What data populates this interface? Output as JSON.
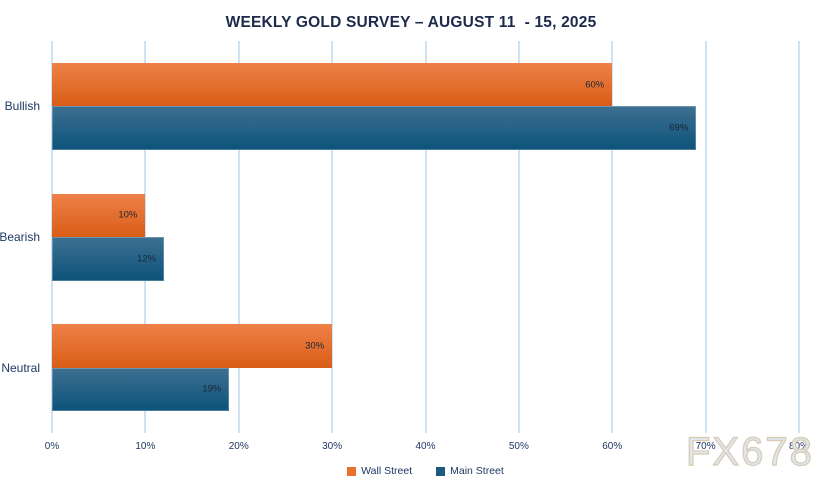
{
  "title": "WEEKLY GOLD SURVEY – AUGUST 11  - 15, 2025",
  "watermark": "FX678",
  "colors": {
    "wall_street_solid": "#e8712f",
    "wall_street_gradient_top": "#ee8148",
    "wall_street_gradient_bottom": "#d95d16",
    "main_street_solid": "#1b5a7e",
    "main_street_gradient_top": "#3d7092",
    "main_street_gradient_bottom": "#0d537a",
    "gridline": "#cfe2f3",
    "axis_text": "#1f3864",
    "title_text": "#1b2a4a"
  },
  "chart_data": {
    "type": "bar",
    "orientation": "horizontal",
    "title": "WEEKLY GOLD SURVEY – AUGUST 11  - 15, 2025",
    "categories": [
      "Bullish",
      "Bearish",
      "Neutral"
    ],
    "series": [
      {
        "name": "Wall Street",
        "color": "#e8712f",
        "values": [
          60,
          10,
          30
        ]
      },
      {
        "name": "Main Street",
        "color": "#1b5a7e",
        "values": [
          69,
          12,
          19
        ]
      }
    ],
    "value_suffix": "%",
    "xlim": [
      0,
      80
    ],
    "x_ticks": [
      "0%",
      "10%",
      "20%",
      "30%",
      "40%",
      "50%",
      "60%",
      "70%",
      "80%"
    ],
    "grid": true,
    "legend_position": "bottom",
    "data_labels": "inside-end"
  },
  "legend": {
    "items": [
      {
        "label": "Wall Street"
      },
      {
        "label": "Main Street"
      }
    ]
  }
}
